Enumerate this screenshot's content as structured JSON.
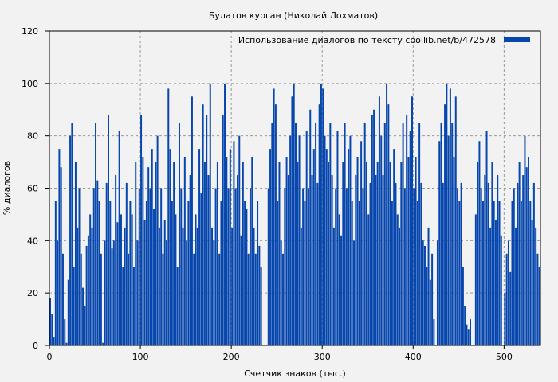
{
  "chart_data": {
    "type": "bar",
    "title": "Булатов курган (Николай Лохматов)",
    "xlabel": "Счетчик знаков (тыс.)",
    "ylabel": "% диалогов",
    "legend": {
      "label": "Использование диалогов по тексту  coollib.net/b/472578",
      "placement": "top-right"
    },
    "series_color": "#0646ad",
    "xlim": [
      0,
      540
    ],
    "ylim": [
      0,
      120
    ],
    "x_ticks": [
      0,
      100,
      200,
      300,
      400,
      500
    ],
    "y_ticks": [
      0,
      20,
      40,
      60,
      80,
      100,
      120
    ],
    "grid": true,
    "x_step": 2,
    "values": [
      18,
      12,
      3,
      55,
      40,
      75,
      68,
      35,
      10,
      1,
      25,
      80,
      85,
      30,
      70,
      45,
      60,
      35,
      22,
      15,
      38,
      42,
      50,
      45,
      60,
      85,
      63,
      55,
      35,
      1,
      40,
      62,
      88,
      55,
      37,
      40,
      65,
      47,
      82,
      50,
      30,
      45,
      62,
      35,
      55,
      50,
      30,
      70,
      40,
      60,
      88,
      72,
      48,
      55,
      68,
      60,
      75,
      52,
      70,
      80,
      45,
      60,
      35,
      48,
      40,
      98,
      75,
      55,
      70,
      50,
      30,
      85,
      60,
      45,
      72,
      40,
      55,
      65,
      95,
      35,
      50,
      45,
      75,
      58,
      92,
      70,
      88,
      65,
      100,
      45,
      40,
      60,
      70,
      35,
      55,
      88,
      100,
      72,
      60,
      75,
      45,
      78,
      60,
      65,
      80,
      42,
      70,
      55,
      52,
      35,
      60,
      72,
      45,
      35,
      55,
      38,
      30,
      0,
      0,
      0,
      60,
      75,
      85,
      98,
      92,
      55,
      70,
      40,
      35,
      60,
      72,
      65,
      80,
      95,
      100,
      85,
      70,
      80,
      45,
      60,
      55,
      82,
      60,
      90,
      65,
      75,
      85,
      62,
      92,
      100,
      98,
      80,
      75,
      70,
      85,
      65,
      45,
      60,
      82,
      50,
      42,
      70,
      85,
      60,
      75,
      80,
      55,
      40,
      65,
      72,
      55,
      78,
      60,
      85,
      70,
      50,
      62,
      88,
      90,
      65,
      70,
      95,
      80,
      65,
      85,
      100,
      92,
      70,
      55,
      75,
      62,
      50,
      45,
      70,
      85,
      60,
      88,
      72,
      82,
      95,
      60,
      72,
      55,
      85,
      62,
      40,
      38,
      30,
      45,
      25,
      35,
      10,
      0,
      40,
      78,
      85,
      62,
      92,
      100,
      80,
      98,
      85,
      72,
      95,
      60,
      55,
      62,
      30,
      15,
      8,
      6,
      10,
      0,
      0,
      50,
      70,
      78,
      60,
      55,
      65,
      82,
      62,
      45,
      70,
      55,
      48,
      65,
      55,
      42,
      0,
      20,
      35,
      40,
      28,
      55,
      60,
      45,
      62,
      70,
      55,
      65,
      80,
      68,
      72,
      55,
      48,
      62,
      45,
      35,
      30
    ]
  }
}
